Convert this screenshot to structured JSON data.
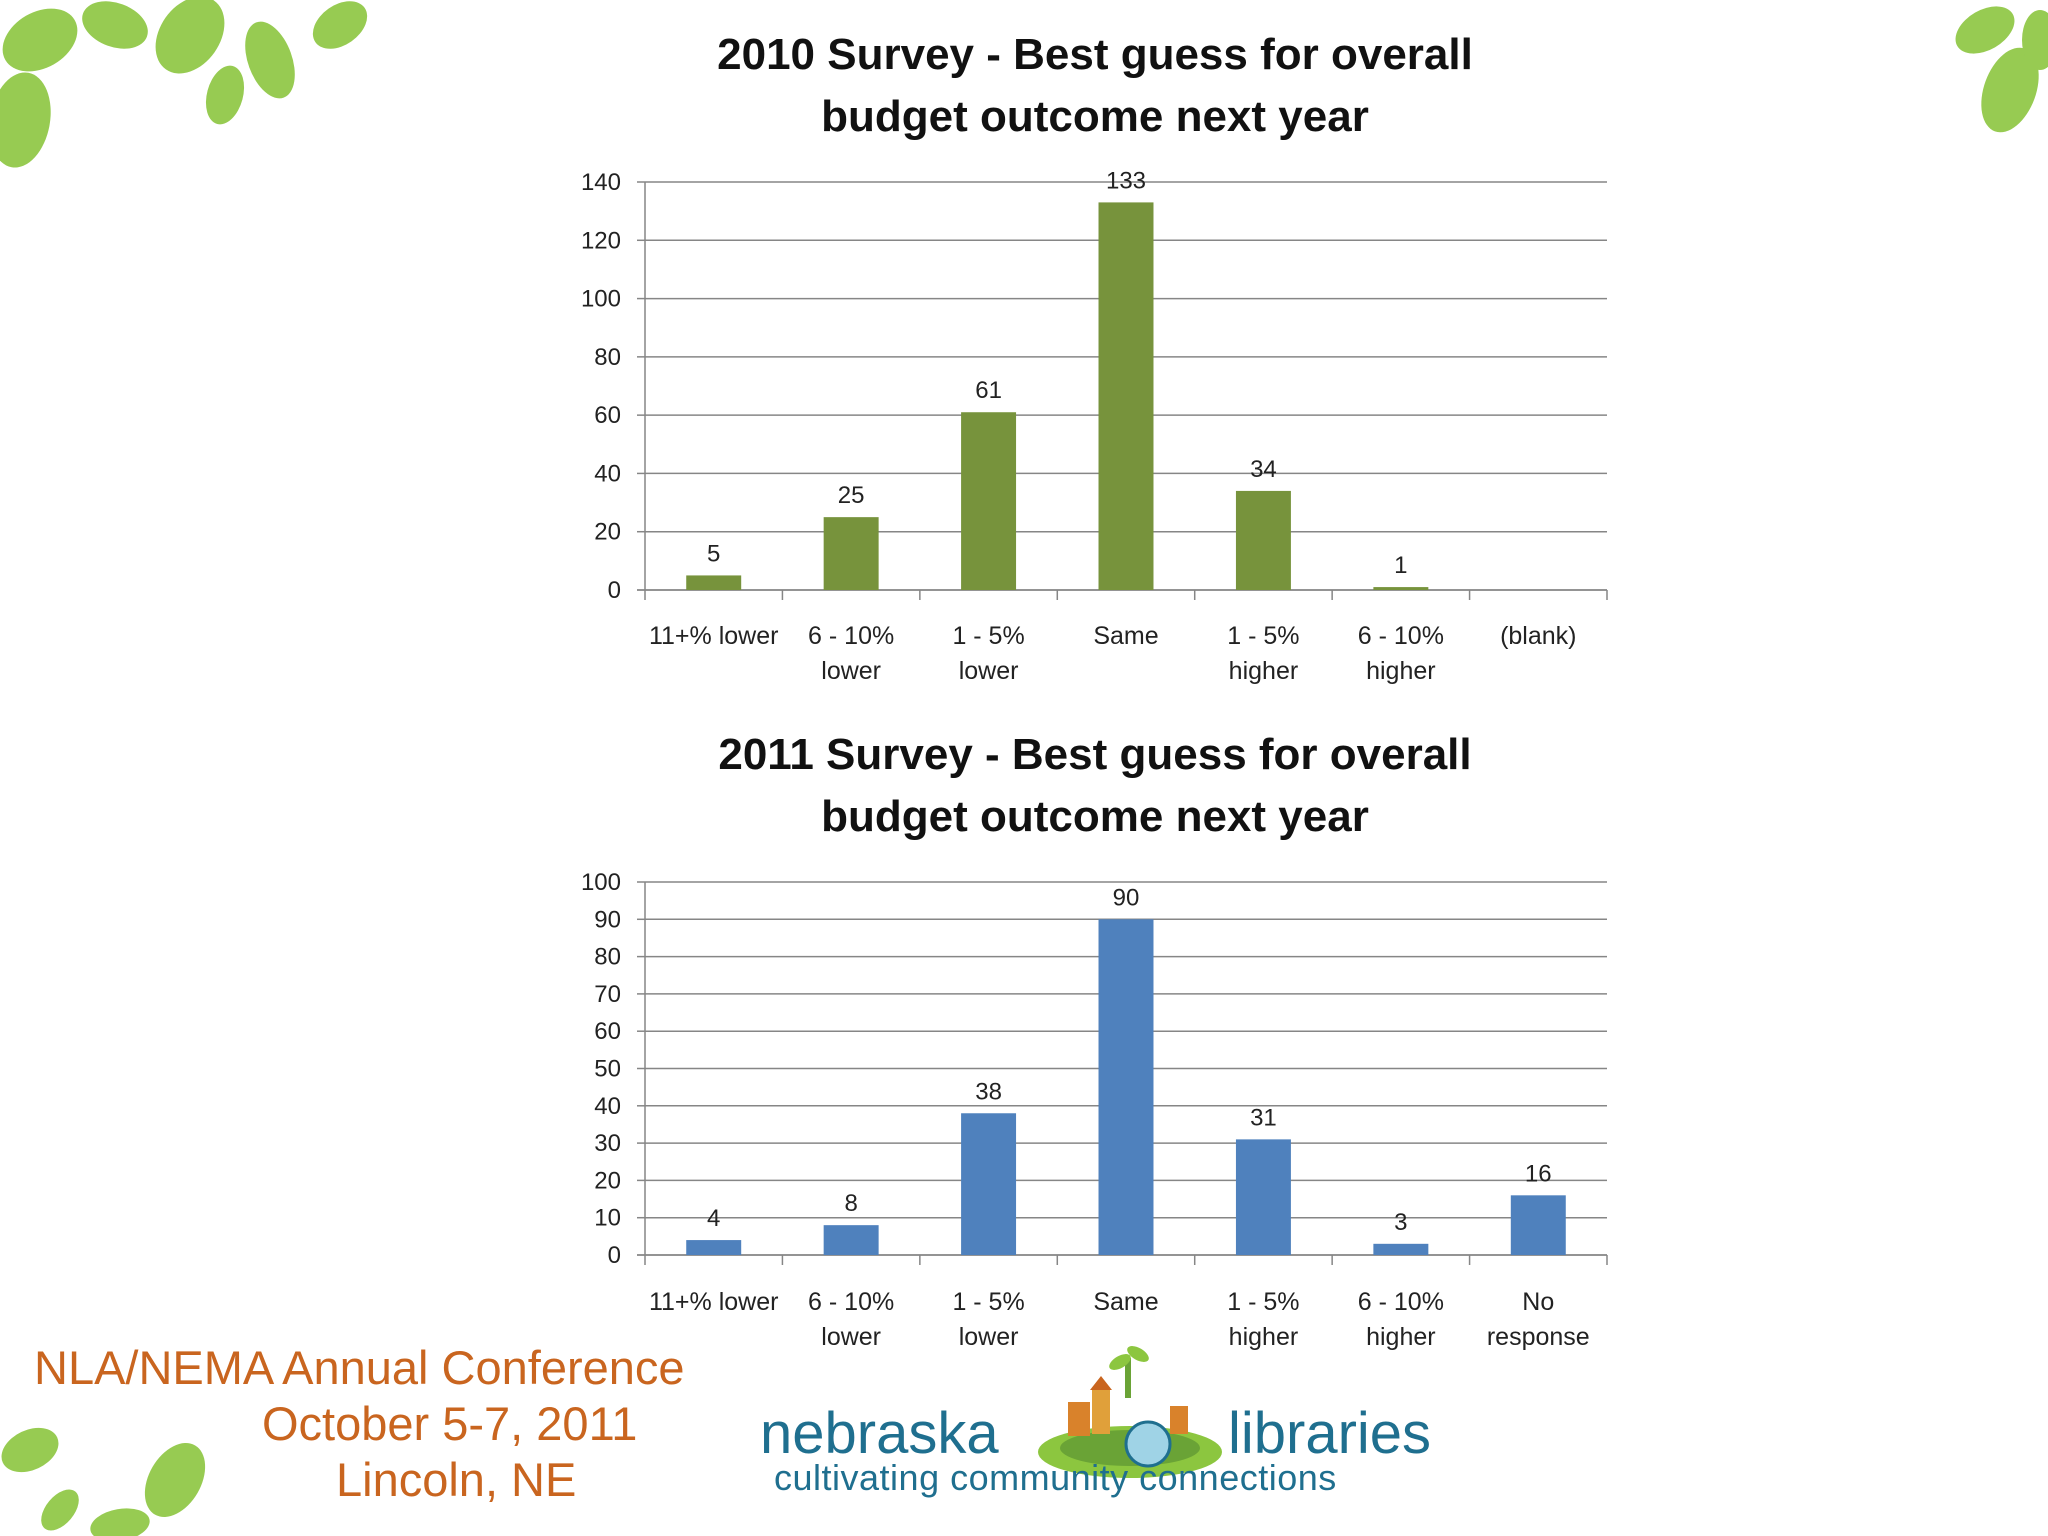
{
  "colors": {
    "series_2010": "#77933c",
    "series_2011": "#4f81bd",
    "gridline": "#868686",
    "leaf": "#8cc63f",
    "conference_text": "#c9651f",
    "brand_text": "#1f6f8f"
  },
  "chart_data": [
    {
      "type": "bar",
      "title_line1": "2010 Survey - Best guess for overall",
      "title_line2": "budget outcome next year",
      "categories": [
        [
          "11+% lower"
        ],
        [
          "6 - 10%",
          "lower"
        ],
        [
          "1 - 5%",
          "lower"
        ],
        [
          "Same"
        ],
        [
          "1 - 5%",
          "higher"
        ],
        [
          "6 - 10%",
          "higher"
        ],
        [
          "(blank)"
        ]
      ],
      "values": [
        5,
        25,
        61,
        133,
        34,
        1,
        null
      ],
      "ylim": [
        0,
        140
      ],
      "yticks": [
        0,
        20,
        40,
        60,
        80,
        100,
        120,
        140
      ],
      "grid": true,
      "legend": "none"
    },
    {
      "type": "bar",
      "title_line1": "2011 Survey - Best guess for overall",
      "title_line2": "budget outcome next year",
      "categories": [
        [
          "11+% lower"
        ],
        [
          "6 - 10%",
          "lower"
        ],
        [
          "1 - 5%",
          "lower"
        ],
        [
          "Same"
        ],
        [
          "1 - 5%",
          "higher"
        ],
        [
          "6 - 10%",
          "higher"
        ],
        [
          "No",
          "response"
        ]
      ],
      "values": [
        4,
        8,
        38,
        90,
        31,
        3,
        16
      ],
      "ylim": [
        0,
        100
      ],
      "yticks": [
        0,
        10,
        20,
        30,
        40,
        50,
        60,
        70,
        80,
        90,
        100
      ],
      "grid": true,
      "legend": "none"
    }
  ],
  "footer": {
    "conference_line1": "NLA/NEMA Annual Conference",
    "conference_line2": "October 5-7, 2011",
    "conference_line3": "Lincoln, NE",
    "brand_left": "nebraska",
    "brand_right": "libraries",
    "brand_tagline": "cultivating community connections"
  },
  "icons": {
    "leaf_decor": "leaf-cluster-icon",
    "logo": "library-globe-logo-icon"
  }
}
